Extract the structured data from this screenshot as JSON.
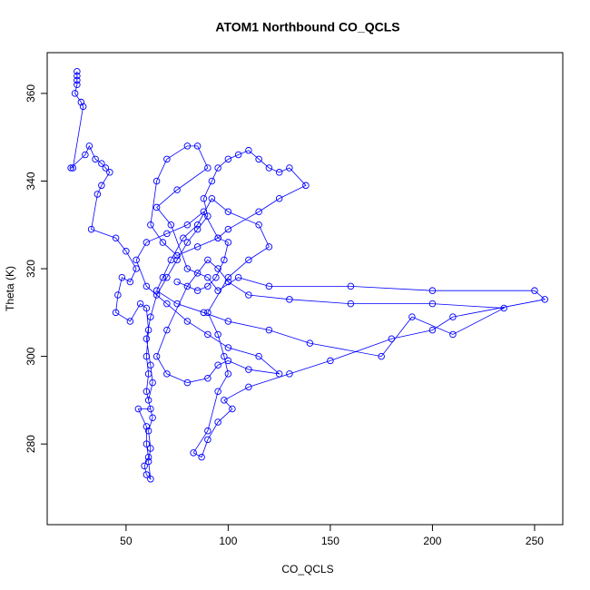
{
  "chart_data": {
    "type": "scatter",
    "mode": "points-and-lines",
    "title": "ATOM1 Northbound CO_QCLS",
    "x_label": "CO_QCLS",
    "y_label": "Theta (K)",
    "color": "#0000ff",
    "xlim": [
      11.4,
      263.8
    ],
    "ylim": [
      261.6,
      369.3
    ],
    "xticks": [
      50,
      100,
      150,
      200,
      250
    ],
    "yticks": [
      280,
      300,
      320,
      340,
      360
    ],
    "x": [
      26,
      26,
      26,
      26,
      25,
      28,
      29,
      24,
      23,
      30,
      32,
      35,
      38,
      40,
      42,
      38,
      36,
      33,
      45,
      50,
      55,
      52,
      48,
      46,
      45,
      52,
      57,
      60,
      61,
      60,
      61,
      60,
      62,
      56,
      60,
      60,
      61,
      59,
      60,
      62,
      61,
      62,
      61,
      63,
      61,
      63,
      62,
      60,
      62,
      65,
      70,
      75,
      80,
      85,
      90,
      88,
      92,
      95,
      100,
      105,
      110,
      115,
      120,
      125,
      130,
      138,
      125,
      115,
      100,
      95,
      85,
      75,
      68,
      62,
      65,
      70,
      80,
      85,
      90,
      75,
      65,
      72,
      80,
      90,
      95,
      105,
      120,
      160,
      200,
      250,
      255,
      210,
      200,
      180,
      150,
      130,
      110,
      98,
      102,
      95,
      90,
      87,
      83,
      90,
      95,
      100,
      98,
      95,
      90,
      100,
      110,
      120,
      115,
      100,
      92,
      85,
      78,
      72,
      68,
      65,
      75,
      88,
      100,
      120,
      140,
      175,
      190,
      210,
      235,
      200,
      160,
      130,
      110,
      100,
      95,
      90,
      85,
      80,
      70,
      65,
      70,
      80,
      90,
      95,
      100,
      110,
      125,
      115,
      100,
      90,
      80,
      70,
      60,
      55,
      60,
      70,
      80,
      88,
      95,
      100,
      98,
      94,
      90,
      85,
      75
    ],
    "values": [
      365,
      364,
      363,
      362,
      360,
      358,
      357,
      343,
      343,
      346,
      348,
      345,
      344,
      343,
      342,
      339,
      337,
      329,
      327,
      324,
      320,
      317,
      318,
      314,
      310,
      308,
      312,
      311,
      306,
      300,
      296,
      292,
      288,
      288,
      284,
      280,
      277,
      275,
      273,
      272,
      276,
      279,
      283,
      286,
      290,
      294,
      298,
      304,
      309,
      314,
      318,
      322,
      326,
      329,
      332,
      336,
      340,
      343,
      345,
      346,
      347,
      345,
      343,
      342,
      343,
      339,
      336,
      333,
      329,
      327,
      325,
      323,
      326,
      330,
      340,
      345,
      348,
      348,
      343,
      338,
      334,
      330,
      320,
      318,
      315,
      318,
      316,
      316,
      315,
      315,
      313,
      309,
      306,
      304,
      299,
      296,
      293,
      290,
      288,
      285,
      281,
      277,
      278,
      283,
      292,
      296,
      300,
      305,
      310,
      318,
      322,
      325,
      330,
      333,
      336,
      330,
      327,
      322,
      318,
      315,
      312,
      310,
      308,
      306,
      303,
      300,
      309,
      305,
      311,
      312,
      312,
      313,
      314,
      317,
      320,
      322,
      319,
      316,
      306,
      300,
      296,
      294,
      295,
      298,
      299,
      297,
      296,
      300,
      302,
      305,
      308,
      312,
      316,
      322,
      326,
      328,
      330,
      333,
      327,
      326,
      322,
      318,
      316,
      315,
      317
    ]
  }
}
